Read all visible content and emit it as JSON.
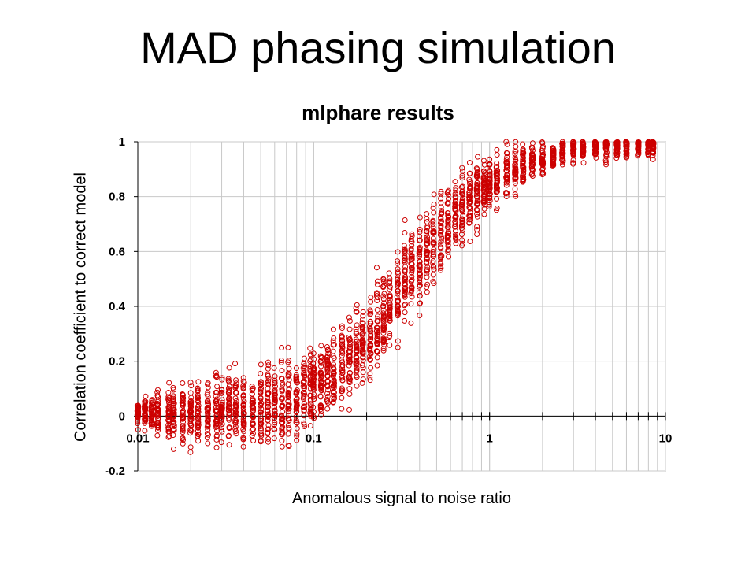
{
  "slide": {
    "title": "MAD phasing simulation"
  },
  "chart_data": {
    "type": "scatter",
    "title": "mlphare results",
    "xlabel": "Anomalous signal to noise ratio",
    "ylabel": "Correlation coefficient to correct model",
    "xscale": "log",
    "xlim": [
      0.01,
      10
    ],
    "ylim": [
      -0.2,
      1
    ],
    "yticks": [
      -0.2,
      0,
      0.2,
      0.4,
      0.6,
      0.8,
      1
    ],
    "ytick_labels": [
      "-0.2",
      "0",
      "0.2",
      "0.4",
      "0.6",
      "0.8",
      "1"
    ],
    "xticks": [
      0.01,
      0.1,
      1,
      10
    ],
    "xtick_labels": [
      "0.01",
      "0.1",
      "1",
      "10"
    ],
    "grid": true,
    "marker": "open-circle",
    "marker_color": "#cc0000",
    "series": [
      {
        "name": "mlphare",
        "x_levels": [
          0.01,
          0.011,
          0.012,
          0.013,
          0.015,
          0.016,
          0.018,
          0.02,
          0.022,
          0.025,
          0.028,
          0.03,
          0.033,
          0.036,
          0.04,
          0.045,
          0.05,
          0.055,
          0.06,
          0.066,
          0.072,
          0.08,
          0.088,
          0.096,
          0.1,
          0.11,
          0.12,
          0.13,
          0.145,
          0.16,
          0.175,
          0.19,
          0.21,
          0.23,
          0.25,
          0.27,
          0.3,
          0.33,
          0.36,
          0.4,
          0.44,
          0.48,
          0.53,
          0.58,
          0.64,
          0.7,
          0.77,
          0.85,
          0.93,
          1.0,
          1.1,
          1.25,
          1.4,
          1.55,
          1.75,
          2.0,
          2.3,
          2.6,
          3.0,
          3.4,
          4.0,
          4.6,
          5.3,
          6.0,
          7.0,
          8.0,
          8.5
        ],
        "y_center": [
          0.01,
          0.01,
          0.01,
          0.01,
          0.01,
          0.01,
          0.01,
          0.01,
          0.01,
          0.01,
          0.02,
          0.02,
          0.02,
          0.02,
          0.02,
          0.03,
          0.03,
          0.04,
          0.04,
          0.05,
          0.06,
          0.07,
          0.09,
          0.1,
          0.11,
          0.13,
          0.15,
          0.17,
          0.19,
          0.21,
          0.24,
          0.27,
          0.3,
          0.33,
          0.37,
          0.41,
          0.44,
          0.48,
          0.52,
          0.56,
          0.6,
          0.63,
          0.67,
          0.7,
          0.73,
          0.76,
          0.78,
          0.81,
          0.83,
          0.85,
          0.87,
          0.89,
          0.9,
          0.92,
          0.93,
          0.94,
          0.95,
          0.96,
          0.97,
          0.975,
          0.98,
          0.985,
          0.99,
          0.99,
          0.99,
          0.99,
          0.99
        ],
        "y_spread": [
          0.05,
          0.06,
          0.07,
          0.08,
          0.1,
          0.1,
          0.12,
          0.12,
          0.12,
          0.13,
          0.13,
          0.14,
          0.14,
          0.14,
          0.14,
          0.15,
          0.15,
          0.15,
          0.15,
          0.15,
          0.15,
          0.15,
          0.15,
          0.15,
          0.15,
          0.15,
          0.15,
          0.15,
          0.15,
          0.15,
          0.15,
          0.15,
          0.16,
          0.16,
          0.16,
          0.17,
          0.17,
          0.17,
          0.17,
          0.17,
          0.17,
          0.17,
          0.16,
          0.16,
          0.15,
          0.15,
          0.14,
          0.13,
          0.12,
          0.12,
          0.11,
          0.1,
          0.09,
          0.08,
          0.07,
          0.06,
          0.05,
          0.05,
          0.05,
          0.05,
          0.05,
          0.05,
          0.05,
          0.05,
          0.05,
          0.05,
          0.05
        ],
        "points_per_level": 40
      }
    ]
  }
}
